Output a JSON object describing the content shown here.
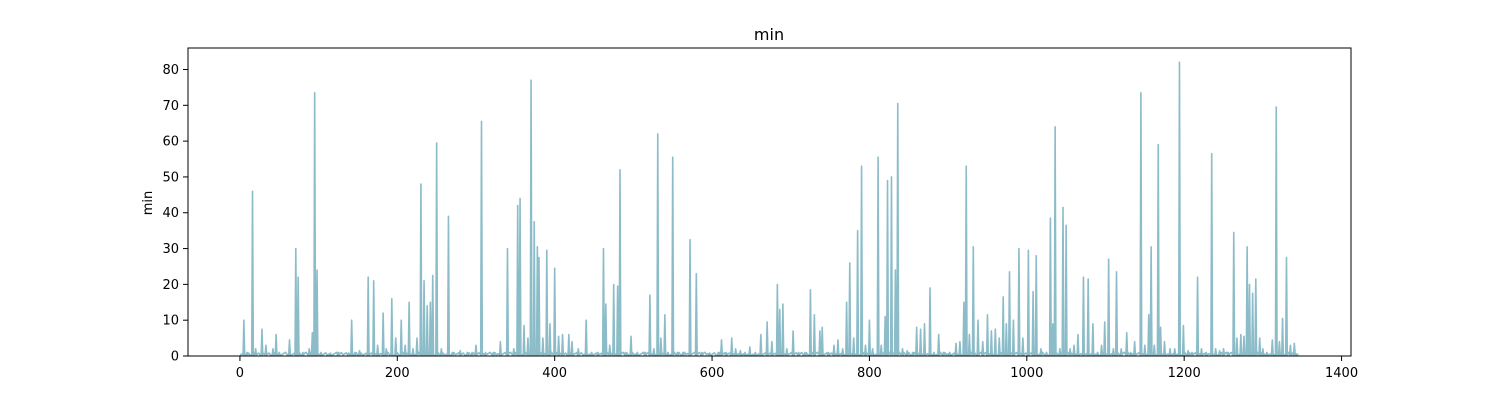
{
  "chart_data": {
    "type": "line",
    "title": "min",
    "xlabel": "",
    "ylabel": "min",
    "xlim": [
      -66,
      1412
    ],
    "ylim": [
      0,
      86
    ],
    "xticks": [
      0,
      200,
      400,
      600,
      800,
      1000,
      1200,
      1400
    ],
    "yticks": [
      0,
      10,
      20,
      30,
      40,
      50,
      60,
      70,
      80
    ],
    "grid": false,
    "line_color": "#8bbcc8",
    "peaks": [
      [
        5,
        10
      ],
      [
        9,
        1
      ],
      [
        16,
        46
      ],
      [
        20,
        2
      ],
      [
        28,
        7.5
      ],
      [
        33,
        3
      ],
      [
        42,
        2
      ],
      [
        46,
        6
      ],
      [
        50,
        1
      ],
      [
        63,
        4.5
      ],
      [
        71,
        30
      ],
      [
        74,
        22
      ],
      [
        80,
        1
      ],
      [
        88,
        2
      ],
      [
        92,
        6.5
      ],
      [
        95,
        73.5
      ],
      [
        98,
        24
      ],
      [
        103,
        1
      ],
      [
        115,
        0.8
      ],
      [
        125,
        1
      ],
      [
        138,
        0.8
      ],
      [
        142,
        10
      ],
      [
        146,
        1
      ],
      [
        152,
        1.5
      ],
      [
        163,
        22
      ],
      [
        170,
        21
      ],
      [
        175,
        3
      ],
      [
        182,
        12
      ],
      [
        186,
        2
      ],
      [
        193,
        16
      ],
      [
        198,
        5
      ],
      [
        205,
        10
      ],
      [
        210,
        3
      ],
      [
        215,
        15
      ],
      [
        220,
        2
      ],
      [
        225,
        5
      ],
      [
        230,
        48
      ],
      [
        234,
        21
      ],
      [
        238,
        14
      ],
      [
        242,
        15
      ],
      [
        245,
        22.5
      ],
      [
        250,
        59.5
      ],
      [
        256,
        2
      ],
      [
        265,
        39
      ],
      [
        270,
        1
      ],
      [
        280,
        1.5
      ],
      [
        289,
        1
      ],
      [
        295,
        1
      ],
      [
        300,
        3
      ],
      [
        307,
        65.5
      ],
      [
        312,
        1
      ],
      [
        322,
        1
      ],
      [
        331,
        4
      ],
      [
        340,
        30
      ],
      [
        348,
        2
      ],
      [
        353,
        42
      ],
      [
        356,
        44
      ],
      [
        361,
        8.5
      ],
      [
        366,
        5
      ],
      [
        370,
        77
      ],
      [
        374,
        37.5
      ],
      [
        378,
        30.5
      ],
      [
        380,
        27.5
      ],
      [
        385,
        5
      ],
      [
        390,
        29.5
      ],
      [
        394,
        9
      ],
      [
        400,
        24.5
      ],
      [
        405,
        5.5
      ],
      [
        410,
        6
      ],
      [
        418,
        6
      ],
      [
        422,
        4
      ],
      [
        430,
        2
      ],
      [
        440,
        10
      ],
      [
        447,
        1
      ],
      [
        455,
        1
      ],
      [
        462,
        30
      ],
      [
        465,
        14.5
      ],
      [
        470,
        3
      ],
      [
        475,
        20
      ],
      [
        480,
        19.5
      ],
      [
        483,
        52
      ],
      [
        490,
        1
      ],
      [
        497,
        5.5
      ],
      [
        505,
        1
      ],
      [
        515,
        1
      ],
      [
        521,
        17
      ],
      [
        526,
        2
      ],
      [
        531,
        62
      ],
      [
        535,
        5
      ],
      [
        540,
        11.5
      ],
      [
        544,
        1
      ],
      [
        550,
        55.5
      ],
      [
        556,
        1
      ],
      [
        563,
        1
      ],
      [
        572,
        32.5
      ],
      [
        580,
        23
      ],
      [
        587,
        1
      ],
      [
        597,
        0.8
      ],
      [
        608,
        1
      ],
      [
        612,
        4.5
      ],
      [
        618,
        1
      ],
      [
        625,
        5
      ],
      [
        630,
        2
      ],
      [
        636,
        1.5
      ],
      [
        642,
        1
      ],
      [
        648,
        2.5
      ],
      [
        655,
        1
      ],
      [
        662,
        6
      ],
      [
        670,
        9.5
      ],
      [
        676,
        4
      ],
      [
        683,
        20
      ],
      [
        686,
        13
      ],
      [
        690,
        14.5
      ],
      [
        695,
        2
      ],
      [
        703,
        7
      ],
      [
        710,
        1
      ],
      [
        718,
        1
      ],
      [
        725,
        18.5
      ],
      [
        730,
        11.5
      ],
      [
        737,
        7
      ],
      [
        740,
        8
      ],
      [
        748,
        1
      ],
      [
        755,
        3
      ],
      [
        760,
        4.5
      ],
      [
        766,
        2
      ],
      [
        771,
        15
      ],
      [
        775,
        26
      ],
      [
        780,
        5
      ],
      [
        785,
        35
      ],
      [
        790,
        53
      ],
      [
        795,
        3
      ],
      [
        800,
        10
      ],
      [
        804,
        2
      ],
      [
        811,
        55.5
      ],
      [
        815,
        3
      ],
      [
        820,
        11
      ],
      [
        823,
        49
      ],
      [
        828,
        50
      ],
      [
        833,
        24
      ],
      [
        836,
        70.5
      ],
      [
        842,
        2
      ],
      [
        848,
        1.5
      ],
      [
        855,
        1
      ],
      [
        860,
        8
      ],
      [
        865,
        7.5
      ],
      [
        870,
        9
      ],
      [
        877,
        19
      ],
      [
        882,
        1
      ],
      [
        888,
        6
      ],
      [
        894,
        1
      ],
      [
        902,
        1
      ],
      [
        910,
        3.5
      ],
      [
        915,
        4
      ],
      [
        920,
        15
      ],
      [
        923,
        53
      ],
      [
        927,
        6
      ],
      [
        932,
        30.5
      ],
      [
        938,
        10
      ],
      [
        944,
        4
      ],
      [
        950,
        11.5
      ],
      [
        955,
        7
      ],
      [
        960,
        7.5
      ],
      [
        965,
        5
      ],
      [
        970,
        16.5
      ],
      [
        974,
        9
      ],
      [
        978,
        23.5
      ],
      [
        983,
        10
      ],
      [
        990,
        30
      ],
      [
        995,
        5
      ],
      [
        1002,
        29.5
      ],
      [
        1008,
        18
      ],
      [
        1012,
        28
      ],
      [
        1018,
        2
      ],
      [
        1025,
        1
      ],
      [
        1030,
        38.5
      ],
      [
        1033,
        9
      ],
      [
        1036,
        64
      ],
      [
        1042,
        2
      ],
      [
        1046,
        41.5
      ],
      [
        1050,
        36.5
      ],
      [
        1055,
        2
      ],
      [
        1060,
        3
      ],
      [
        1065,
        6
      ],
      [
        1072,
        22
      ],
      [
        1078,
        21.5
      ],
      [
        1084,
        9
      ],
      [
        1090,
        1
      ],
      [
        1095,
        3
      ],
      [
        1099,
        9.5
      ],
      [
        1104,
        27
      ],
      [
        1110,
        2
      ],
      [
        1114,
        23.5
      ],
      [
        1120,
        2
      ],
      [
        1127,
        6.5
      ],
      [
        1132,
        1
      ],
      [
        1137,
        4
      ],
      [
        1145,
        73.5
      ],
      [
        1150,
        3
      ],
      [
        1155,
        11.5
      ],
      [
        1158,
        30.5
      ],
      [
        1162,
        3
      ],
      [
        1167,
        59
      ],
      [
        1170,
        8
      ],
      [
        1175,
        4
      ],
      [
        1182,
        2
      ],
      [
        1188,
        2
      ],
      [
        1194,
        82
      ],
      [
        1199,
        8.5
      ],
      [
        1205,
        1.5
      ],
      [
        1210,
        1
      ],
      [
        1217,
        22
      ],
      [
        1222,
        2
      ],
      [
        1228,
        1
      ],
      [
        1235,
        56.5
      ],
      [
        1240,
        2
      ],
      [
        1245,
        1.5
      ],
      [
        1250,
        2
      ],
      [
        1256,
        1
      ],
      [
        1263,
        34.5
      ],
      [
        1267,
        5
      ],
      [
        1272,
        6
      ],
      [
        1276,
        5.5
      ],
      [
        1280,
        30.5
      ],
      [
        1283,
        20
      ],
      [
        1287,
        17.5
      ],
      [
        1291,
        21.5
      ],
      [
        1296,
        5
      ],
      [
        1300,
        2
      ],
      [
        1305,
        1
      ],
      [
        1312,
        4.5
      ],
      [
        1317,
        69.5
      ],
      [
        1321,
        4
      ],
      [
        1325,
        10.5
      ],
      [
        1330,
        27.5
      ],
      [
        1335,
        3
      ],
      [
        1340,
        3.5
      ],
      [
        1344,
        0.5
      ]
    ]
  }
}
